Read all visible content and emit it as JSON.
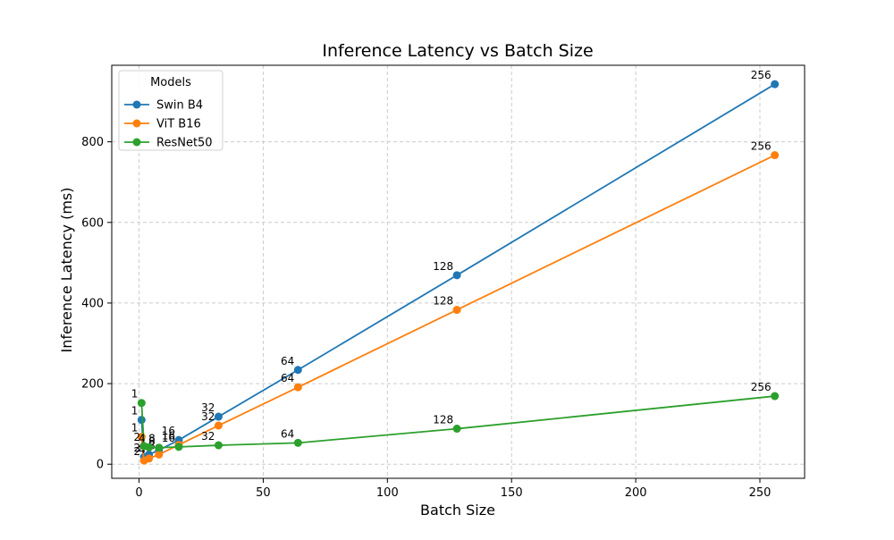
{
  "chart_data": {
    "type": "line",
    "title": "Inference Latency vs Batch Size",
    "xlabel": "Batch Size",
    "ylabel": "Inference Latency (ms)",
    "xlim": [
      -11,
      268
    ],
    "ylim": [
      -35,
      990
    ],
    "xticks": [
      0,
      50,
      100,
      150,
      200,
      250
    ],
    "yticks": [
      0,
      200,
      400,
      600,
      800
    ],
    "grid": true,
    "legend": {
      "title": "Models",
      "placement": "top-left"
    },
    "series": [
      {
        "name": "Swin B4",
        "color": "#1f77b4",
        "x": [
          1,
          2,
          4,
          8,
          16,
          32,
          64,
          128,
          256
        ],
        "y": [
          110,
          18,
          24,
          35,
          60,
          118,
          234,
          469,
          943
        ],
        "labels": [
          "1",
          "2",
          "4",
          "8",
          "16",
          "32",
          "64",
          "128",
          "256"
        ]
      },
      {
        "name": "ViT B16",
        "color": "#ff7f0e",
        "x": [
          1,
          2,
          4,
          8,
          16,
          32,
          64,
          128,
          256
        ],
        "y": [
          68,
          9,
          14,
          24,
          48,
          96,
          191,
          383,
          767
        ],
        "labels": [
          "1",
          "2",
          "4",
          "8",
          "16",
          "32",
          "64",
          "128",
          "256"
        ]
      },
      {
        "name": "ResNet50",
        "color": "#2ca02c",
        "x": [
          1,
          2,
          4,
          8,
          16,
          32,
          64,
          128,
          256
        ],
        "y": [
          152,
          45,
          42,
          41,
          43,
          47,
          53,
          88,
          169
        ],
        "labels": [
          "1",
          "2",
          "4",
          "8",
          "16",
          "32",
          "64",
          "128",
          "256"
        ]
      }
    ]
  }
}
